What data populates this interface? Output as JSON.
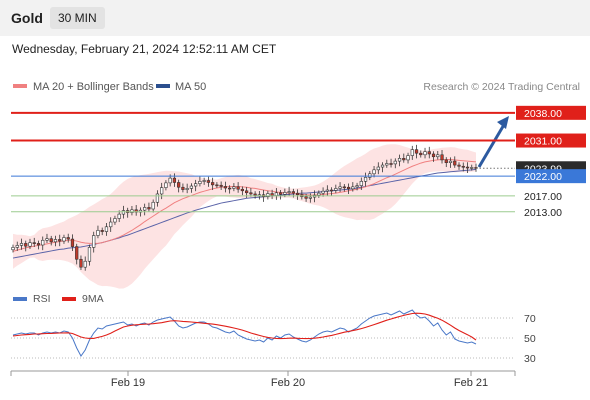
{
  "header": {
    "instrument": "Gold",
    "interval": "30 MIN",
    "datetime": "Wednesday, February 21, 2024 12:52:11 AM CET"
  },
  "legend": {
    "ma20": "MA 20 + Bollinger Bands",
    "ma50": "MA 50",
    "credit": "Research © 2024 Trading Central"
  },
  "colors": {
    "resistance": "#e0201a",
    "support": "#9ccc8f",
    "pivot": "#3a78d8",
    "current": "#2b2b2b",
    "ma20": "#f08080",
    "ma50": "#5a63a8",
    "band": "#fde3e3",
    "candle_up": "#ffffff",
    "candle_down": "#c0392b",
    "rsi": "#4a78c8",
    "rsi_ma": "#e0201a",
    "arrow": "#2c5aa0"
  },
  "chart_data": [
    {
      "type": "candlestick",
      "x_labels": [
        "Feb 19",
        "Feb 20",
        "Feb 21"
      ],
      "ylim": [
        1995,
        2042
      ],
      "levels": [
        {
          "value": 2038.0,
          "label": "2038.00",
          "kind": "resistance"
        },
        {
          "value": 2031.0,
          "label": "2031.00",
          "kind": "resistance"
        },
        {
          "value": 2023.99,
          "label": "2023.99",
          "kind": "current"
        },
        {
          "value": 2022.0,
          "label": "2022.00",
          "kind": "pivot"
        },
        {
          "value": 2017.0,
          "label": "2017.00",
          "kind": "support"
        },
        {
          "value": 2013.0,
          "label": "2013.00",
          "kind": "support"
        }
      ],
      "close": [
        2004,
        2004.5,
        2005,
        2004.3,
        2005.2,
        2005,
        2004.6,
        2005.8,
        2006.2,
        2005.4,
        2006,
        2005.6,
        2006.5,
        2006.1,
        2004.2,
        2001,
        1999,
        2000.5,
        2004,
        2007,
        2008.3,
        2008,
        2009.2,
        2010.4,
        2011.3,
        2012.4,
        2013.3,
        2012.8,
        2013.5,
        2012.9,
        2013.4,
        2014.1,
        2013.7,
        2015.4,
        2017.5,
        2019.1,
        2020.3,
        2021.5,
        2020.4,
        2019.2,
        2018.6,
        2018.9,
        2019.5,
        2020.1,
        2020.7,
        2020.9,
        2020.4,
        2019.8,
        2019.7,
        2019.4,
        2019,
        2018.9,
        2019.3,
        2018.7,
        2018.3,
        2017.8,
        2017.5,
        2017.2,
        2017.3,
        2016.8,
        2017.6,
        2017.1,
        2017.8,
        2017.4,
        2017.9,
        2018.1,
        2017.7,
        2017.3,
        2016.8,
        2016.4,
        2016.7,
        2017.2,
        2017.7,
        2018.2,
        2018.5,
        2018.4,
        2018.9,
        2019.3,
        2019.2,
        2018.8,
        2019.3,
        2019.6,
        2020.7,
        2021.7,
        2022.6,
        2023.6,
        2024.3,
        2024.8,
        2025.2,
        2025.1,
        2025.8,
        2026.5,
        2026.1,
        2027.2,
        2028.7,
        2027.8,
        2027.4,
        2028.2,
        2027.6,
        2026.9,
        2027.4,
        2026.1,
        2025.4,
        2025.8,
        2024.8,
        2024.5,
        2024.3,
        2024.1,
        2024.2,
        2023.99
      ],
      "ma20": [
        2003,
        2003.3,
        2003.6,
        2003.9,
        2004.1,
        2004.3,
        2004.5,
        2004.7,
        2004.9,
        2005.1,
        2005.3,
        2005.5,
        2005.6,
        2005.8,
        2005.8,
        2005.6,
        2005.3,
        2005.1,
        2005,
        2005,
        2005,
        2005.2,
        2005.5,
        2005.8,
        2006.2,
        2006.6,
        2007.1,
        2007.7,
        2008.3,
        2009,
        2009.7,
        2010.5,
        2011.2,
        2011.9,
        2012.6,
        2013.3,
        2013.9,
        2014.6,
        2015.3,
        2015.8,
        2016.3,
        2016.7,
        2017.1,
        2017.5,
        2017.9,
        2018.2,
        2018.5,
        2018.8,
        2019,
        2019.2,
        2019.3,
        2019.4,
        2019.4,
        2019.4,
        2019.3,
        2019.2,
        2019,
        2018.9,
        2018.7,
        2018.5,
        2018.3,
        2018.2,
        2018,
        2017.9,
        2017.8,
        2017.7,
        2017.6,
        2017.5,
        2017.4,
        2017.3,
        2017.2,
        2017.2,
        2017.3,
        2017.4,
        2017.5,
        2017.6,
        2017.7,
        2017.9,
        2018.1,
        2018.3,
        2018.5,
        2018.7,
        2019,
        2019.3,
        2019.7,
        2020.1,
        2020.6,
        2021.1,
        2021.6,
        2022,
        2022.5,
        2023,
        2023.5,
        2024,
        2024.5,
        2024.9,
        2025.3,
        2025.6,
        2025.8,
        2026,
        2026.1,
        2026.2,
        2026.2,
        2026.2,
        2026.1,
        2026,
        2025.9,
        2025.8,
        2025.7,
        2025.6
      ],
      "ma50": [
        2001.3,
        2001.5,
        2001.7,
        2001.9,
        2002.1,
        2002.3,
        2002.5,
        2002.7,
        2002.9,
        2003.1,
        2003.3,
        2003.5,
        2003.6,
        2003.8,
        2003.9,
        2004,
        2004.1,
        2004.3,
        2004.5,
        2004.7,
        2005,
        2005.2,
        2005.5,
        2005.8,
        2006.1,
        2006.4,
        2006.8,
        2007.1,
        2007.5,
        2007.9,
        2008.3,
        2008.7,
        2009.1,
        2009.5,
        2009.9,
        2010.3,
        2010.7,
        2011.1,
        2011.5,
        2011.9,
        2012.3,
        2012.7,
        2013,
        2013.4,
        2013.7,
        2014,
        2014.3,
        2014.6,
        2014.9,
        2015.2,
        2015.4,
        2015.6,
        2015.8,
        2016,
        2016.2,
        2016.4,
        2016.5,
        2016.6,
        2016.7,
        2016.8,
        2016.9,
        2017,
        2017.1,
        2017.2,
        2017.3,
        2017.4,
        2017.5,
        2017.6,
        2017.7,
        2017.7,
        2017.8,
        2017.9,
        2018,
        2018.1,
        2018.2,
        2018.3,
        2018.4,
        2018.5,
        2018.6,
        2018.7,
        2018.8,
        2019,
        2019.2,
        2019.4,
        2019.6,
        2019.8,
        2020,
        2020.2,
        2020.4,
        2020.6,
        2020.8,
        2021,
        2021.2,
        2021.4,
        2021.6,
        2021.8,
        2022,
        2022.2,
        2022.4,
        2022.6,
        2022.8,
        2022.9,
        2023,
        2023.1,
        2023.2,
        2023.3,
        2023.4,
        2023.5,
        2023.6,
        2023.7
      ]
    },
    {
      "type": "line",
      "title": "RSI",
      "ticks": [
        30,
        50,
        70
      ],
      "ylim": [
        20,
        80
      ],
      "series": [
        {
          "name": "RSI",
          "values": [
            53,
            54,
            55,
            54,
            55,
            55,
            53,
            55,
            56,
            55,
            56,
            55,
            57,
            56,
            50,
            40,
            32,
            38,
            48,
            55,
            60,
            59,
            62,
            63,
            64,
            65,
            66,
            63,
            64,
            62,
            64,
            65,
            63,
            66,
            68,
            69,
            70,
            71,
            67,
            62,
            60,
            61,
            63,
            65,
            66,
            66,
            64,
            61,
            60,
            58,
            56,
            55,
            57,
            53,
            51,
            49,
            48,
            47,
            48,
            46,
            50,
            48,
            52,
            50,
            53,
            54,
            51,
            49,
            47,
            46,
            48,
            51,
            54,
            56,
            57,
            56,
            58,
            60,
            59,
            56,
            58,
            60,
            64,
            67,
            70,
            72,
            73,
            74,
            75,
            73,
            75,
            77,
            74,
            76,
            78,
            73,
            70,
            71,
            67,
            62,
            65,
            58,
            53,
            56,
            49,
            47,
            46,
            45,
            46,
            44
          ]
        },
        {
          "name": "9MA",
          "values": [
            52,
            52.5,
            53,
            53.3,
            53.6,
            54,
            54.1,
            54.3,
            54.5,
            54.6,
            54.8,
            55,
            55.1,
            55.2,
            54.5,
            52.8,
            51,
            50,
            49.6,
            49.6,
            50.6,
            51.6,
            53,
            54.8,
            57,
            59,
            61,
            62,
            62.8,
            63.2,
            63.5,
            63.8,
            64,
            64.3,
            64.8,
            65.3,
            66.2,
            67,
            67.3,
            67,
            66.6,
            66.3,
            66,
            65.6,
            65.2,
            64.7,
            64.3,
            63.9,
            63.3,
            62.6,
            61.8,
            60.9,
            60,
            59,
            57.9,
            56.5,
            55,
            53.8,
            52.6,
            51.5,
            50.6,
            50,
            49.6,
            49.4,
            49.5,
            49.8,
            49.9,
            49.7,
            49.5,
            49.4,
            49.5,
            49.8,
            50.3,
            51,
            51.8,
            52.6,
            53.6,
            54.7,
            55.8,
            56.6,
            57.4,
            58.3,
            59.4,
            60.6,
            62,
            63.4,
            64.8,
            66.3,
            67.8,
            69,
            70.3,
            71.5,
            72.6,
            73.6,
            74.5,
            74.8,
            74.6,
            74,
            72.8,
            71.2,
            69.8,
            67.8,
            65.4,
            62.8,
            60,
            57.5,
            55.4,
            53.3,
            51,
            48
          ]
        }
      ]
    }
  ]
}
